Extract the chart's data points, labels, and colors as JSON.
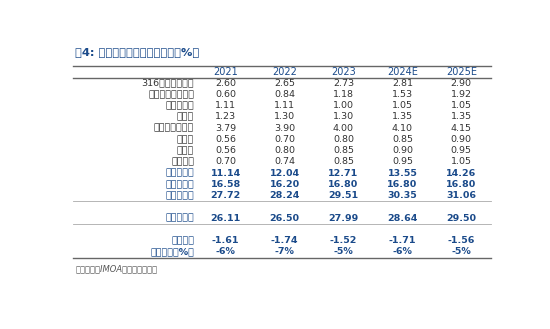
{
  "title": "图4: 全球钼供需平衡表（万吨，%）",
  "columns": [
    "",
    "2021",
    "2022",
    "2023",
    "2024E",
    "2025E"
  ],
  "rows": [
    [
      "316不锈钢钼消费",
      "2.60",
      "2.65",
      "2.73",
      "2.81",
      "2.90"
    ],
    [
      "双相不锈钢钼消费",
      "0.60",
      "0.84",
      "1.18",
      "1.53",
      "1.92"
    ],
    [
      "化工钼消费",
      "1.11",
      "1.11",
      "1.00",
      "1.05",
      "1.05"
    ],
    [
      "工具钢",
      "1.23",
      "1.30",
      "1.30",
      "1.35",
      "1.35"
    ],
    [
      "高强钢、工程钢",
      "3.79",
      "3.90",
      "4.00",
      "4.10",
      "4.15"
    ],
    [
      "金属钼",
      "0.56",
      "0.70",
      "0.80",
      "0.85",
      "0.90"
    ],
    [
      "镍合金",
      "0.56",
      "0.80",
      "0.85",
      "0.90",
      "0.95"
    ],
    [
      "风电用材",
      "0.70",
      "0.74",
      "0.85",
      "0.95",
      "1.05"
    ],
    [
      "国内钼消费",
      "11.14",
      "12.04",
      "12.71",
      "13.55",
      "14.26"
    ],
    [
      "海外钼消费",
      "16.58",
      "16.20",
      "16.80",
      "16.80",
      "16.80"
    ],
    [
      "全球总消费",
      "27.72",
      "28.24",
      "29.51",
      "30.35",
      "31.06"
    ],
    [
      "",
      "",
      "",
      "",
      "",
      ""
    ],
    [
      "全球总供给",
      "26.11",
      "26.50",
      "27.99",
      "28.64",
      "29.50"
    ],
    [
      "",
      "",
      "",
      "",
      "",
      ""
    ],
    [
      "供需平衡",
      "-1.61",
      "-1.74",
      "-1.52",
      "-1.71",
      "-1.56"
    ],
    [
      "缺口比例（%）",
      "-6%",
      "-7%",
      "-5%",
      "-6%",
      "-5%"
    ]
  ],
  "bold_rows": [
    8,
    9,
    10,
    12,
    14,
    15
  ],
  "separator_after": [
    10,
    12
  ],
  "footer": "数据来源：IMOA，中信建投证券",
  "bg_color": "#ffffff",
  "text_color": "#333333",
  "header_text_color": "#1a4a8a",
  "bold_text_color": "#1a4a8a",
  "line_color": "#666666",
  "separator_color": "#aaaaaa"
}
